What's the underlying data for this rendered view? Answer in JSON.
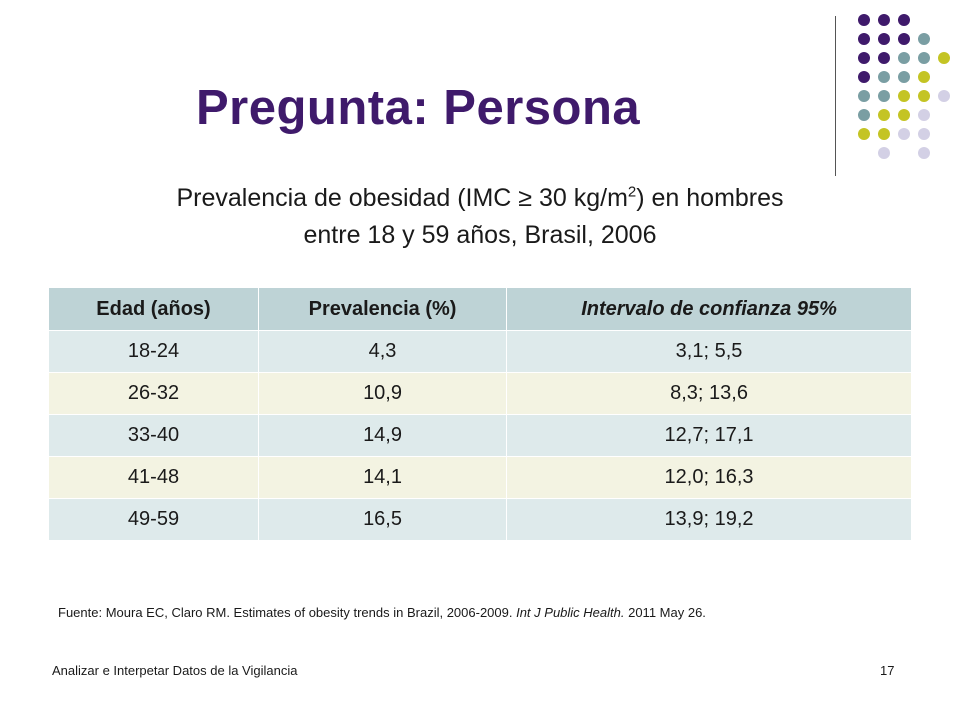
{
  "slide": {
    "title": "Pregunta: Persona",
    "subtitle_before_sup": "Prevalencia de obesidad (IMC ≥ 30 kg/m",
    "subtitle_sup": "2",
    "subtitle_after_sup": ") en hombres",
    "subtitle_line2": "entre 18 y 59 años, Brasil, 2006",
    "colors": {
      "title": "#3f1a6b",
      "dot_purple": "#3f1a6b",
      "dot_teal": "#7a9ea3",
      "dot_yellow": "#c4c424",
      "dot_lavender": "#d3d0e5"
    }
  },
  "table": {
    "headers": [
      "Edad (años)",
      "Prevalencia (%)",
      "Intervalo de confianza 95%"
    ],
    "rows": [
      [
        "18-24",
        "4,3",
        "3,1; 5,5"
      ],
      [
        "26-32",
        "10,9",
        "8,3; 13,6"
      ],
      [
        "33-40",
        "14,9",
        "12,7; 17,1"
      ],
      [
        "41-48",
        "14,1",
        "12,0; 16,3"
      ],
      [
        "49-59",
        "16,5",
        "13,9; 19,2"
      ]
    ]
  },
  "source": {
    "prefix": "Fuente: Moura EC, Claro RM. Estimates of obesity trends in Brazil, 2006-2009. ",
    "journal": "Int J Public Health.",
    "suffix": " 2011 May 26."
  },
  "footer": {
    "left": "Analizar e Interpetar Datos de la Vigilancia",
    "page_number": "17"
  }
}
